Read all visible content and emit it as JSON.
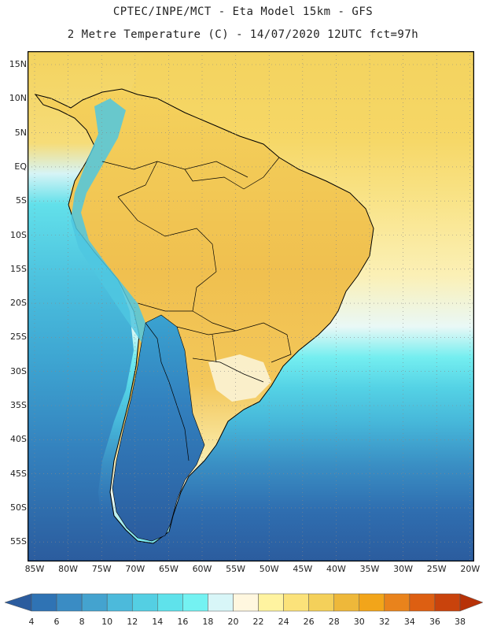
{
  "header": {
    "line1": "CPTEC/INPE/MCT -  Eta Model 15km - GFS",
    "line2": "2 Metre Temperature (C) - 14/07/2020 12UTC fct=97h"
  },
  "map": {
    "lat_labels": [
      "15N",
      "10N",
      "5N",
      "EQ",
      "5S",
      "10S",
      "15S",
      "20S",
      "25S",
      "30S",
      "35S",
      "40S",
      "45S",
      "50S",
      "55S"
    ],
    "lon_labels": [
      "85W",
      "80W",
      "75W",
      "70W",
      "65W",
      "60W",
      "55W",
      "50W",
      "45W",
      "40W",
      "35W",
      "30W",
      "25W",
      "20W"
    ],
    "grid": "dotted",
    "palette_regions": {
      "ocean_south": "#2b66a8",
      "ocean_mid": "#3ab5d8",
      "ocean_north": "#f7d65a",
      "land_warm": "#f2c255",
      "andes_cold": "#46c2dc"
    }
  },
  "colorbar": {
    "levels": [
      "4",
      "6",
      "8",
      "10",
      "12",
      "14",
      "16",
      "18",
      "20",
      "22",
      "24",
      "26",
      "28",
      "30",
      "32",
      "34",
      "36",
      "38"
    ],
    "colors": [
      "#2b5c9e",
      "#2f73b4",
      "#3a8cc4",
      "#44a3cf",
      "#4cbadb",
      "#54cfe3",
      "#5fe2eb",
      "#74f2f2",
      "#d8f6f8",
      "#fff7df",
      "#fff3a0",
      "#fbe27a",
      "#f4d05a",
      "#eeb83a",
      "#f2a51a",
      "#e9831c",
      "#dd5f12",
      "#c9430c",
      "#b73208"
    ]
  }
}
